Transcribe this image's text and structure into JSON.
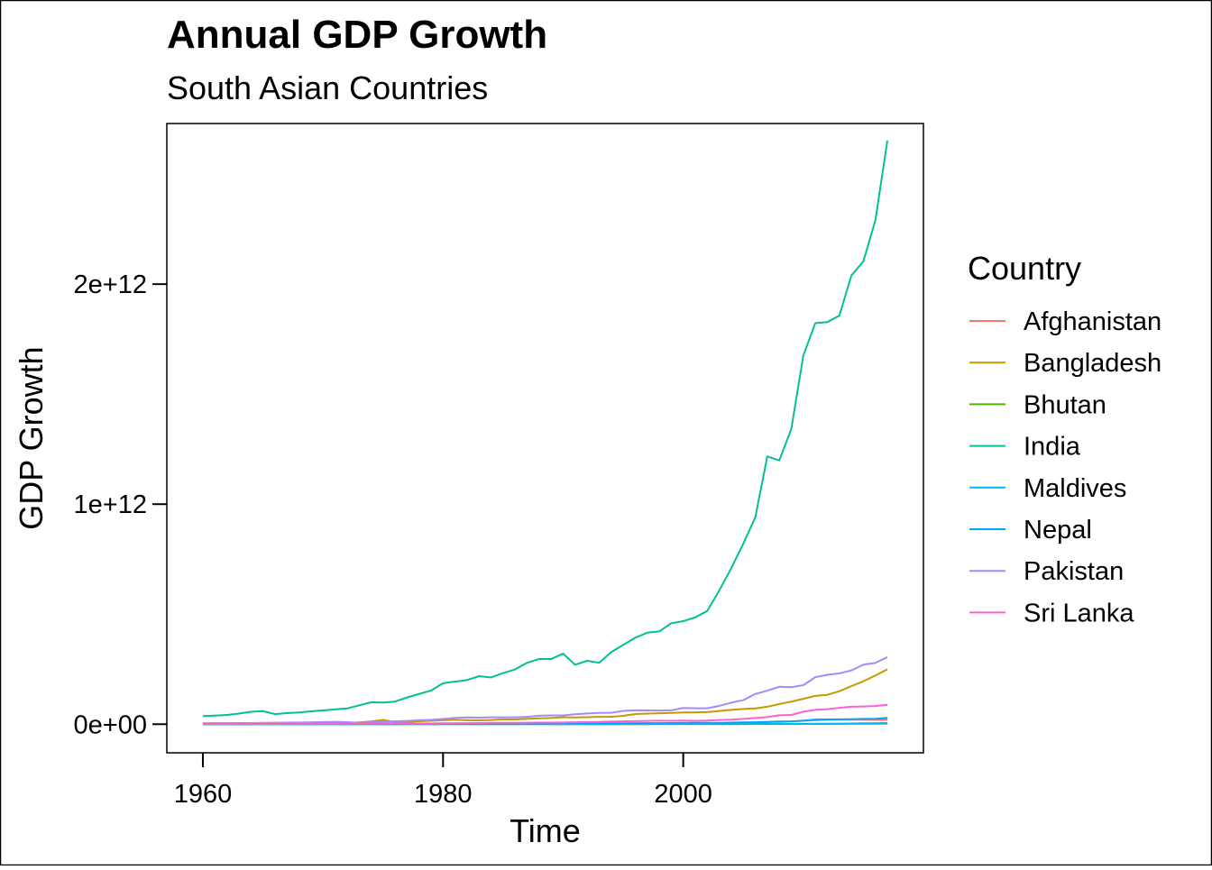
{
  "chart_data": {
    "type": "line",
    "title": "Annual GDP Growth",
    "subtitle": "South Asian Countries",
    "xlabel": "Time",
    "ylabel": "GDP Growth",
    "xlim": [
      1957,
      2020
    ],
    "ylim": [
      -130000000000,
      2730000000000
    ],
    "x_ticks": [
      {
        "value": 1960,
        "label": "1960"
      },
      {
        "value": 1980,
        "label": "1980"
      },
      {
        "value": 2000,
        "label": "2000"
      }
    ],
    "y_ticks": [
      {
        "value": 0,
        "label": "0e+00"
      },
      {
        "value": 1000000000000,
        "label": "1e+12"
      },
      {
        "value": 2000000000000,
        "label": "2e+12"
      }
    ],
    "grid": false,
    "legend": {
      "title": "Country",
      "position": "right"
    },
    "x": [
      1960,
      1961,
      1962,
      1963,
      1964,
      1965,
      1966,
      1967,
      1968,
      1969,
      1970,
      1971,
      1972,
      1973,
      1974,
      1975,
      1976,
      1977,
      1978,
      1979,
      1980,
      1981,
      1982,
      1983,
      1984,
      1985,
      1986,
      1987,
      1988,
      1989,
      1990,
      1991,
      1992,
      1993,
      1994,
      1995,
      1996,
      1997,
      1998,
      1999,
      2000,
      2001,
      2002,
      2003,
      2004,
      2005,
      2006,
      2007,
      2008,
      2009,
      2010,
      2011,
      2012,
      2013,
      2014,
      2015,
      2016,
      2017
    ],
    "series": [
      {
        "name": "Afghanistan",
        "color": "#F8766D",
        "values": [
          540000000.0,
          550000000.0,
          550000000.0,
          750000000.0,
          800000000.0,
          1000000000.0,
          1400000000.0,
          1670000000.0,
          1370000000.0,
          1410000000.0,
          1750000000.0,
          1830000000.0,
          1600000000.0,
          1730000000.0,
          2160000000.0,
          2370000000.0,
          2560000000.0,
          2850000000.0,
          3280000000.0,
          3700000000.0,
          3640000000.0,
          3480000000.0,
          3500000000.0,
          3300000000.0,
          3200000000.0,
          3100000000.0,
          3000000000.0,
          3000000000.0,
          3000000000.0,
          3000000000.0,
          3000000000.0,
          3000000000.0,
          3000000000.0,
          3000000000.0,
          3000000000.0,
          3000000000.0,
          3000000000.0,
          3000000000.0,
          3000000000.0,
          3000000000.0,
          3500000000.0,
          4000000000.0,
          4050000000.0,
          4500000000.0,
          5200000000.0,
          6200000000.0,
          6970000000.0,
          9750000000.0,
          10100000000.0,
          12400000000.0,
          15900000000.0,
          17800000000.0,
          20000000000.0,
          20600000000.0,
          20500000000.0,
          19900000000.0,
          19400000000.0,
          20200000000.0
        ]
      },
      {
        "name": "Bangladesh",
        "color": "#C49A00",
        "values": [
          4300000000.0,
          4600000000.0,
          4800000000.0,
          5100000000.0,
          5200000000.0,
          5700000000.0,
          6100000000.0,
          6600000000.0,
          6900000000.0,
          7600000000.0,
          8100000000.0,
          8200000000.0,
          6300000000.0,
          8100000000.0,
          12500000000.0,
          19400000000.0,
          10100000000.0,
          9700000000.0,
          13300000000.0,
          15600000000.0,
          18100000000.0,
          20200000000.0,
          18000000000.0,
          17600000000.0,
          18800000000.0,
          22300000000.0,
          21800000000.0,
          24100000000.0,
          26600000000.0,
          28400000000.0,
          31600000000.0,
          30900000000.0,
          31700000000.0,
          33200000000.0,
          33800000000.0,
          37900000000.0,
          46400000000.0,
          48200000000.0,
          50000000000.0,
          51300000000.0,
          53400000000.0,
          54000000000.0,
          54700000000.0,
          60200000000.0,
          65100000000.0,
          69400000000.0,
          71800000000.0,
          79600000000.0,
          91600000000.0,
          102500000000.0,
          115300000000.0,
          128600000000.0,
          133400000000.0,
          149900000000.0,
          172900000000.0,
          195100000000.0,
          221400000000.0,
          249700000000.0
        ]
      },
      {
        "name": "Bhutan",
        "color": "#53B400",
        "values": [
          50000000.0,
          50000000.0,
          50000000.0,
          50000000.0,
          60000000.0,
          60000000.0,
          60000000.0,
          70000000.0,
          70000000.0,
          80000000.0,
          80000000.0,
          90000000.0,
          90000000.0,
          100000000.0,
          110000000.0,
          120000000.0,
          130000000.0,
          140000000.0,
          150000000.0,
          160000000.0,
          140000000.0,
          160000000.0,
          170000000.0,
          190000000.0,
          200000000.0,
          170000000.0,
          210000000.0,
          250000000.0,
          300000000.0,
          300000000.0,
          280000000.0,
          240000000.0,
          240000000.0,
          240000000.0,
          270000000.0,
          300000000.0,
          320000000.0,
          350000000.0,
          370000000.0,
          410000000.0,
          440000000.0,
          480000000.0,
          530000000.0,
          600000000.0,
          700000000.0,
          800000000.0,
          900000000.0,
          1200000000.0,
          1300000000.0,
          1300000000.0,
          1600000000.0,
          1800000000.0,
          1800000000.0,
          1800000000.0,
          2000000000.0,
          2100000000.0,
          2200000000.0,
          2500000000.0
        ]
      },
      {
        "name": "India",
        "color": "#00C094",
        "values": [
          37000000000.0,
          39200000000.0,
          42200000000.0,
          48400000000.0,
          56500000000.0,
          59600000000.0,
          45900000000.0,
          50100000000.0,
          53100000000.0,
          58400000000.0,
          62400000000.0,
          67400000000.0,
          71500000000.0,
          85500000000.0,
          99500000000.0,
          98500000000.0,
          102700000000.0,
          121500000000.0,
          137300000000.0,
          152900000000.0,
          186300000000.0,
          193500000000.0,
          200700000000.0,
          218300000000.0,
          212200000000.0,
          232500000000.0,
          248900000000.0,
          279000000000.0,
          296600000000.0,
          296000000000.0,
          320900000000.0,
          270100000000.0,
          288200000000.0,
          279300000000.0,
          327300000000.0,
          360300000000.0,
          392900000000.0,
          415900000000.0,
          421400000000.0,
          458800000000.0,
          468400000000.0,
          485400000000.0,
          514900000000.0,
          607700000000.0,
          709100000000.0,
          820400000000.0,
          940300000000.0,
          1216700000000.0,
          1198900000000.0,
          1341900000000.0,
          1675600000000.0,
          1823100000000.0,
          1827600000000.0,
          1856700000000.0,
          2039100000000.0,
          2103600000000.0,
          2290400000000.0,
          2652600000000.0
        ]
      },
      {
        "name": "Maldives",
        "color": "#00B6EB",
        "values": [
          20000000.0,
          20000000.0,
          20000000.0,
          20000000.0,
          20000000.0,
          20000000.0,
          20000000.0,
          20000000.0,
          20000000.0,
          20000000.0,
          30000000.0,
          30000000.0,
          30000000.0,
          30000000.0,
          30000000.0,
          30000000.0,
          30000000.0,
          40000000.0,
          40000000.0,
          50000000.0,
          60000000.0,
          70000000.0,
          80000000.0,
          90000000.0,
          100000000.0,
          110000000.0,
          120000000.0,
          130000000.0,
          140000000.0,
          160000000.0,
          200000000.0,
          240000000.0,
          270000000.0,
          300000000.0,
          350000000.0,
          400000000.0,
          450000000.0,
          500000000.0,
          550000000.0,
          600000000.0,
          620000000.0,
          630000000.0,
          640000000.0,
          700000000.0,
          800000000.0,
          800000000.0,
          1000000000.0,
          1100000000.0,
          1200000000.0,
          1300000000.0,
          1600000000.0,
          1800000000.0,
          1900000000.0,
          2100000000.0,
          3400000000.0,
          4100000000.0,
          4300000000.0,
          5300000000.0
        ]
      },
      {
        "name": "Nepal",
        "color": "#06A4FF",
        "values": [
          500000000.0,
          510000000.0,
          520000000.0,
          530000000.0,
          550000000.0,
          670000000.0,
          870000000.0,
          770000000.0,
          690000000.0,
          720000000.0,
          870000000.0,
          900000000.0,
          800000000.0,
          1000000000.0,
          1300000000.0,
          1500000000.0,
          1400000000.0,
          1400000000.0,
          1700000000.0,
          2000000000.0,
          2000000000.0,
          2400000000.0,
          2500000000.0,
          2500000000.0,
          2600000000.0,
          2600000000.0,
          2700000000.0,
          3000000000.0,
          3500000000.0,
          3500000000.0,
          3600000000.0,
          3900000000.0,
          3400000000.0,
          3700000000.0,
          4200000000.0,
          4400000000.0,
          4500000000.0,
          4900000000.0,
          4900000000.0,
          5000000000.0,
          5500000000.0,
          6000000000.0,
          6000000000.0,
          6300000000.0,
          7200000000.0,
          8100000000.0,
          9000000000.0,
          10300000000.0,
          12500000000.0,
          12900000000.0,
          16000000000.0,
          21300000000.0,
          21700000000.0,
          22200000000.0,
          22700000000.0,
          24400000000.0,
          24500000000.0,
          28800000000.0
        ]
      },
      {
        "name": "Pakistan",
        "color": "#A58AFF",
        "values": [
          3700000000.0,
          4100000000.0,
          4300000000.0,
          4700000000.0,
          5300000000.0,
          5900000000.0,
          6500000000.0,
          7200000000.0,
          7700000000.0,
          8500000000.0,
          10000000000.0,
          10700000000.0,
          9300000000.0,
          6300000000.0,
          8800000000.0,
          11300000000.0,
          13300000000.0,
          15100000000.0,
          17900000000.0,
          19800000000.0,
          23700000000.0,
          28700000000.0,
          30700000000.0,
          29700000000.0,
          31100000000.0,
          31100000000.0,
          31400000000.0,
          33400000000.0,
          38500000000.0,
          40200000000.0,
          40000000000.0,
          45400000000.0,
          48600000000.0,
          51500000000.0,
          51900000000.0,
          60600000000.0,
          63300000000.0,
          62400000000.0,
          62200000000.0,
          62900000000.0,
          73900000000.0,
          72300000000.0,
          72300000000.0,
          83200000000.0,
          97900000000.0,
          109500000000.0,
          137300000000.0,
          152400000000.0,
          170100000000.0,
          168200000000.0,
          177400000000.0,
          213600000000.0,
          224400000000.0,
          231200000000.0,
          244400000000.0,
          270600000000.0,
          278700000000.0,
          304600000000.0
        ]
      },
      {
        "name": "Sri Lanka",
        "color": "#FB61D7",
        "values": [
          1400000000.0,
          1500000000.0,
          1500000000.0,
          1600000000.0,
          1700000000.0,
          1800000000.0,
          1900000000.0,
          1900000000.0,
          2200000000.0,
          2300000000.0,
          2300000000.0,
          2400000000.0,
          2600000000.0,
          2900000000.0,
          3600000000.0,
          4000000000.0,
          3900000000.0,
          4100000000.0,
          2700000000.0,
          3400000000.0,
          4000000000.0,
          4400000000.0,
          4800000000.0,
          5200000000.0,
          6000000000.0,
          6000000000.0,
          6400000000.0,
          6700000000.0,
          7000000000.0,
          7000000000.0,
          8000000000.0,
          9000000000.0,
          9700000000.0,
          10300000000.0,
          11700000000.0,
          13000000000.0,
          13900000000.0,
          15100000000.0,
          15800000000.0,
          15700000000.0,
          16300000000.0,
          15700000000.0,
          16500000000.0,
          18900000000.0,
          20700000000.0,
          24400000000.0,
          28300000000.0,
          32400000000.0,
          40700000000.0,
          42100000000.0,
          56700000000.0,
          65300000000.0,
          68400000000.0,
          74300000000.0,
          79400000000.0,
          80600000000.0,
          82400000000.0,
          88000000000.0
        ]
      }
    ]
  }
}
